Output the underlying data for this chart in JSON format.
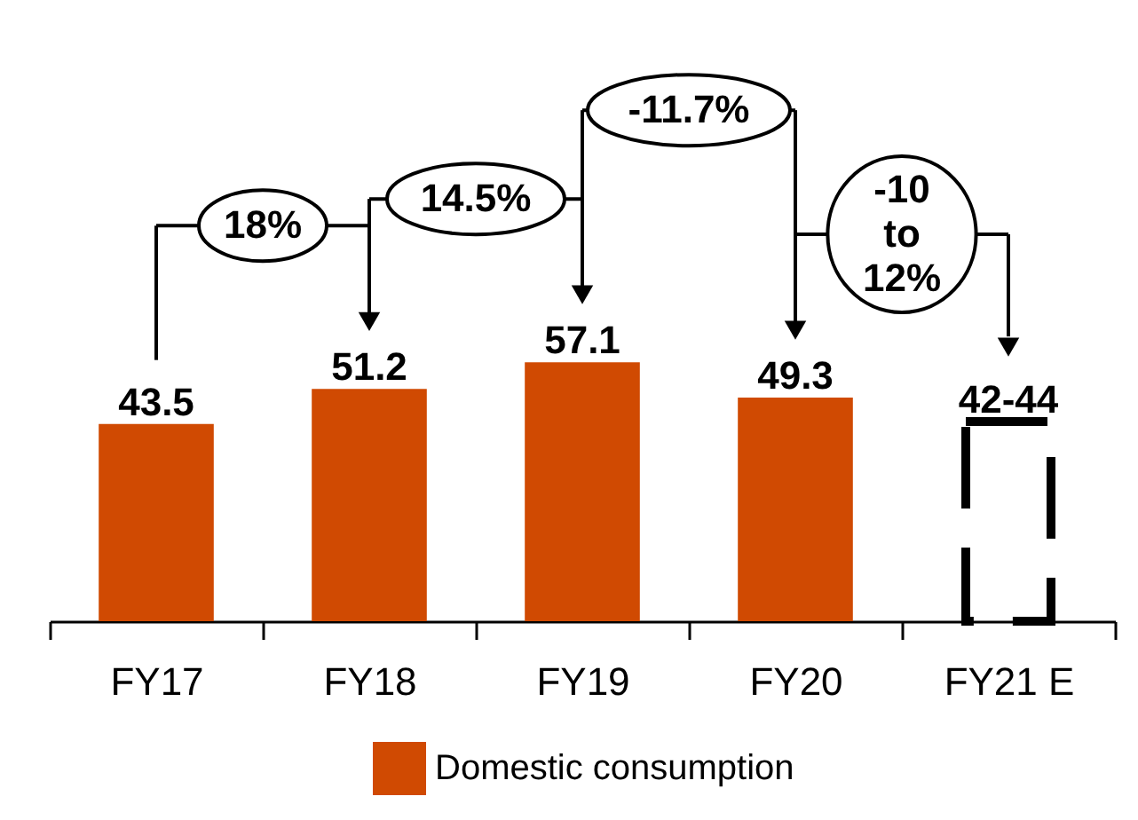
{
  "chart_data": {
    "type": "bar",
    "categories": [
      "FY17",
      "FY18",
      "FY19",
      "FY20",
      "FY21 E"
    ],
    "series": [
      {
        "name": "Domestic consumption",
        "color": "#d04a02",
        "values": [
          43.5,
          51.2,
          57.1,
          49.3,
          null
        ],
        "value_labels": [
          "43.5",
          "51.2",
          "57.1",
          "49.3",
          null
        ]
      },
      {
        "color": "#000000",
        "line_style": "dashed",
        "values": [
          null,
          null,
          null,
          null,
          44
        ],
        "value_labels": [
          null,
          null,
          null,
          null,
          "42-44"
        ]
      }
    ],
    "annotations": [
      "18%",
      "14.5%",
      "-11.7%",
      "-10 to 12%"
    ],
    "legend": "bottom"
  }
}
